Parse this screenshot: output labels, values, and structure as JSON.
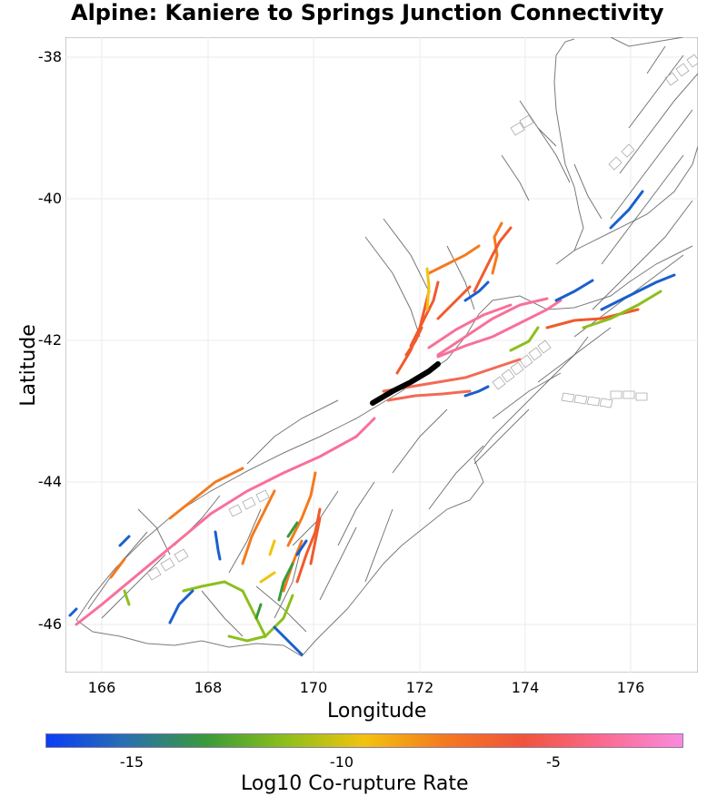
{
  "title": "Alpine: Kaniere to Springs Junction Connectivity",
  "x_axis_label": "Longitude",
  "y_axis_label": "Latitude",
  "x_ticks": [
    "166",
    "168",
    "170",
    "172",
    "174",
    "176"
  ],
  "y_ticks": [
    "-38",
    "-40",
    "-42",
    "-44",
    "-46"
  ],
  "legend": {
    "title": "Log10 Co-rupture Rate",
    "ticks": [
      "-15",
      "-10",
      "-5"
    ],
    "range": [
      -17,
      2
    ],
    "colors": [
      "#0a3df5",
      "#2a6fb0",
      "#3a9a3a",
      "#8cbf1c",
      "#f2c30f",
      "#f47a1f",
      "#f0533c",
      "#fb6a8f",
      "#f98bdc"
    ]
  },
  "chart_data": {
    "type": "map",
    "xlim": [
      165.3,
      177.3
    ],
    "ylim": [
      -46.7,
      -37.7
    ],
    "grid": true,
    "highlighted_section": {
      "name": "Kaniere to Springs Junction",
      "color": "#000000",
      "lon": [
        171.1,
        172.3
      ],
      "lat": [
        -42.9,
        -42.3
      ]
    }
  }
}
